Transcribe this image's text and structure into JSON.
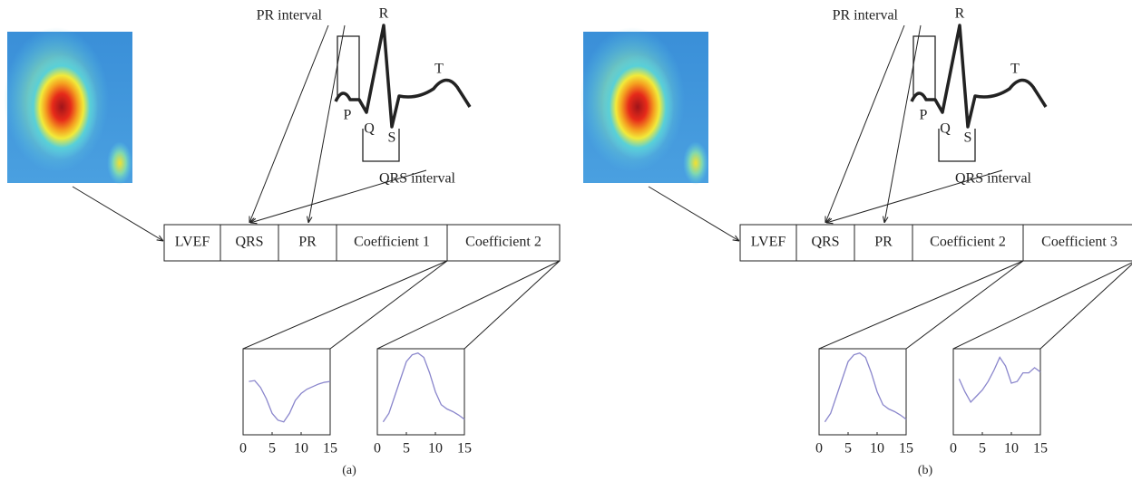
{
  "panels": [
    {
      "caption": "(a)",
      "ecg_labels": [
        "PR interval",
        "R",
        "T",
        "P",
        "Q",
        "S",
        "QRS interval"
      ],
      "feature_boxes": [
        "LVEF",
        "QRS",
        "PR",
        "Coefficient 1",
        "Coefficient 2"
      ],
      "plots": [
        {
          "type": "line",
          "xlim": [
            0,
            15
          ],
          "xticks": [
            0,
            5,
            10,
            15
          ],
          "ylim": [
            0,
            1
          ],
          "x": [
            1,
            2,
            3,
            4,
            5,
            6,
            7,
            8,
            9,
            10,
            11,
            12,
            13,
            14,
            15
          ],
          "values": [
            0.62,
            0.63,
            0.55,
            0.42,
            0.25,
            0.17,
            0.15,
            0.25,
            0.4,
            0.48,
            0.53,
            0.56,
            0.59,
            0.61,
            0.62
          ]
        },
        {
          "type": "line",
          "xlim": [
            0,
            15
          ],
          "xticks": [
            0,
            5,
            10,
            15
          ],
          "ylim": [
            0,
            1
          ],
          "x": [
            1,
            2,
            3,
            4,
            5,
            6,
            7,
            8,
            9,
            10,
            11,
            12,
            13,
            14,
            15
          ],
          "values": [
            0.15,
            0.25,
            0.45,
            0.65,
            0.85,
            0.93,
            0.95,
            0.9,
            0.72,
            0.5,
            0.35,
            0.3,
            0.27,
            0.23,
            0.18
          ]
        }
      ]
    },
    {
      "caption": "(b)",
      "ecg_labels": [
        "PR interval",
        "R",
        "T",
        "P",
        "Q",
        "S",
        "QRS interval"
      ],
      "feature_boxes": [
        "LVEF",
        "QRS",
        "PR",
        "Coefficient 2",
        "Coefficient 3"
      ],
      "plots": [
        {
          "type": "line",
          "xlim": [
            0,
            15
          ],
          "xticks": [
            0,
            5,
            10,
            15
          ],
          "ylim": [
            0,
            1
          ],
          "x": [
            1,
            2,
            3,
            4,
            5,
            6,
            7,
            8,
            9,
            10,
            11,
            12,
            13,
            14,
            15
          ],
          "values": [
            0.15,
            0.25,
            0.45,
            0.65,
            0.85,
            0.93,
            0.95,
            0.9,
            0.72,
            0.5,
            0.35,
            0.3,
            0.27,
            0.23,
            0.18
          ]
        },
        {
          "type": "line",
          "xlim": [
            0,
            15
          ],
          "xticks": [
            0,
            5,
            10,
            15
          ],
          "ylim": [
            0,
            1
          ],
          "x": [
            1,
            2,
            3,
            4,
            5,
            6,
            7,
            8,
            9,
            10,
            11,
            12,
            13,
            14,
            15
          ],
          "values": [
            0.65,
            0.5,
            0.38,
            0.45,
            0.52,
            0.62,
            0.75,
            0.9,
            0.8,
            0.6,
            0.62,
            0.72,
            0.72,
            0.78,
            0.73
          ]
        }
      ]
    }
  ]
}
